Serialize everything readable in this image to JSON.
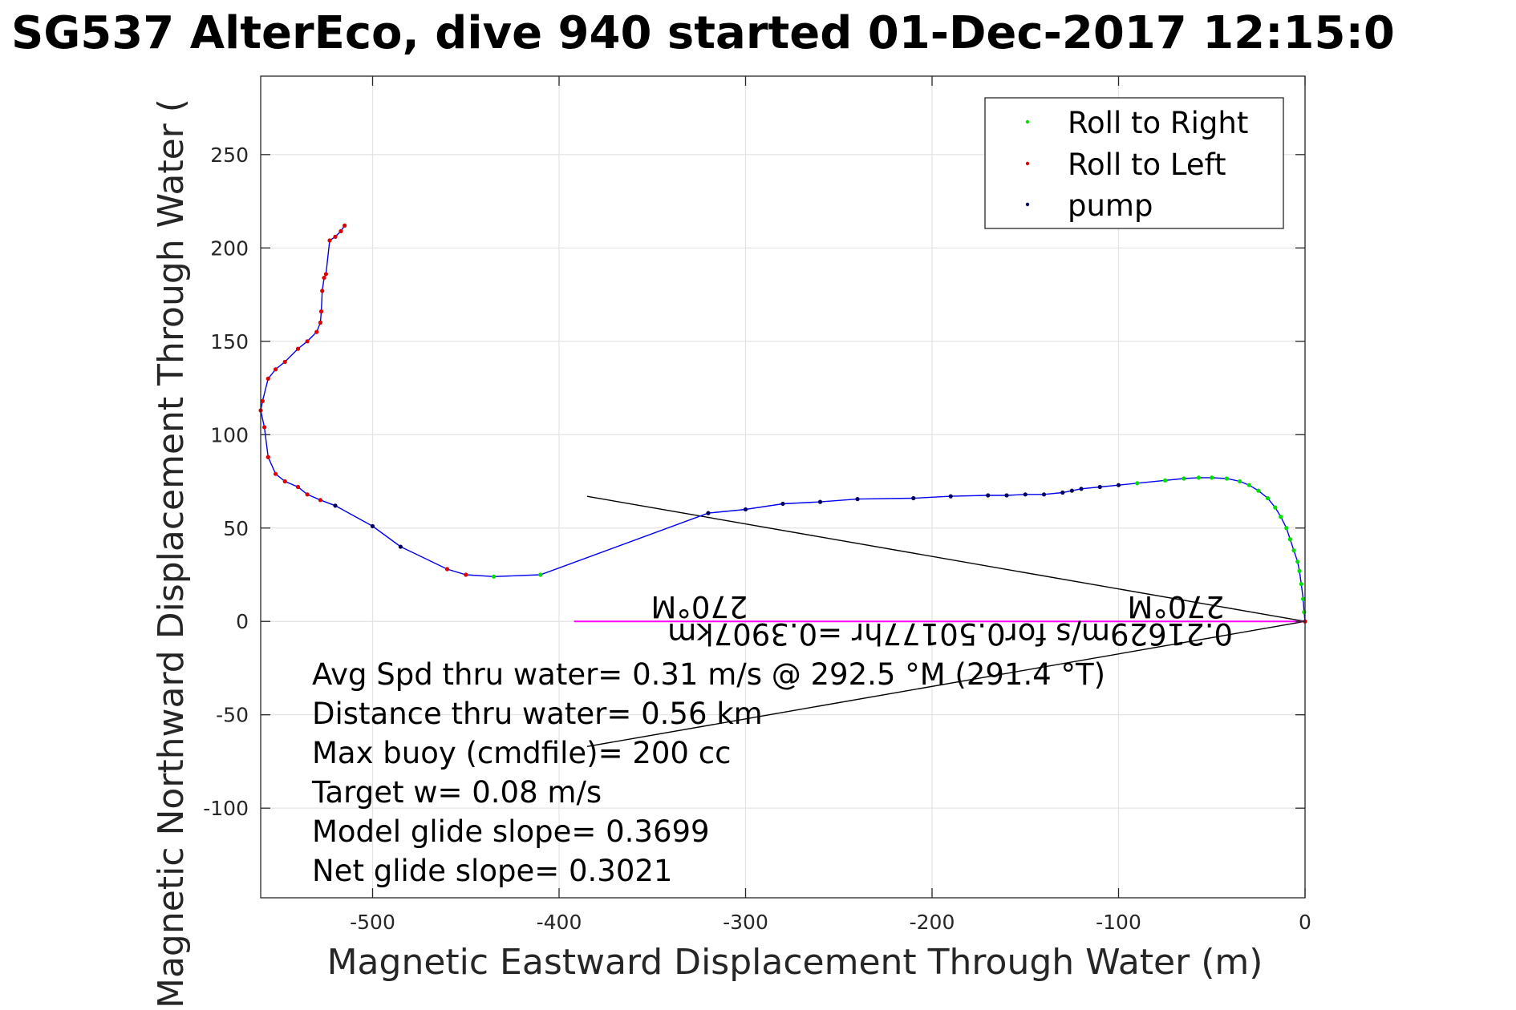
{
  "chart_data": {
    "type": "line",
    "title": "SG537 AlterEco, dive 940 started 01-Dec-2017 12:15:0",
    "xlabel": "Magnetic Eastward Displacement Through Water (m)",
    "ylabel": "Magnetic Northward Displacement Through Water (",
    "xlim": [
      -560,
      0
    ],
    "ylim": [
      -148,
      292
    ],
    "grid": true,
    "legend_position": "top-right",
    "x_ticks": [
      -500,
      -400,
      -300,
      -200,
      -100,
      0
    ],
    "y_ticks": [
      -100,
      -50,
      0,
      50,
      100,
      150,
      200,
      250
    ],
    "x_tick_labels": [
      "-500",
      "-400",
      "-300",
      "-200",
      "-100",
      "0"
    ],
    "y_tick_labels": [
      "-100",
      "-50",
      "0",
      "50",
      "100",
      "150",
      "200",
      "250"
    ],
    "colors": {
      "track": "#0000ee",
      "roll_right": "#00dd00",
      "roll_left": "#dd0000",
      "pump": "#000060",
      "heading": "#ff00ff",
      "ref_lines": "#000000"
    },
    "track": {
      "x": [
        0,
        -0.5,
        -1,
        -2,
        -3,
        -4,
        -6,
        -8,
        -10,
        -13,
        -16,
        -20,
        -25,
        -30,
        -35,
        -42,
        -50,
        -57,
        -65,
        -75,
        -90,
        -100,
        -110,
        -120,
        -125,
        -130,
        -140,
        -150,
        -160,
        -170,
        -190,
        -210,
        -240,
        -260,
        -280,
        -300,
        -320,
        -410,
        -435,
        -450,
        -460,
        -485,
        -500,
        -520,
        -528,
        -535,
        -540,
        -547,
        -552,
        -556,
        -558,
        -560,
        -559,
        -556,
        -552,
        -547,
        -540,
        -535,
        -530,
        -528,
        -527.5,
        -527,
        -526,
        -525,
        -523,
        -520,
        -517,
        -515
      ],
      "y": [
        0,
        5,
        12,
        20,
        27,
        32,
        38,
        44,
        50,
        56,
        61,
        66,
        70,
        73,
        75,
        76.5,
        77,
        77,
        76.5,
        75.5,
        74,
        73,
        72,
        71,
        70,
        69,
        68,
        68,
        67.5,
        67.5,
        67,
        66,
        65.5,
        64,
        63,
        60,
        58,
        25,
        24,
        25,
        28,
        40,
        51,
        62,
        65,
        68,
        72,
        75,
        79,
        88,
        104,
        113,
        118,
        130,
        135,
        139,
        146,
        150,
        155,
        160,
        166,
        177,
        184,
        186,
        204,
        206,
        209,
        212
      ],
      "mark_types": [
        "L",
        "R",
        "R",
        "R",
        "R",
        "R",
        "R",
        "R",
        "R",
        "R",
        "R",
        "R",
        "R",
        "R",
        "R",
        "R",
        "R",
        "R",
        "R",
        "R",
        "R",
        "P",
        "P",
        "P",
        "P",
        "P",
        "P",
        "P",
        "P",
        "P",
        "P",
        "P",
        "P",
        "P",
        "P",
        "P",
        "P",
        "R",
        "R",
        "L",
        "L",
        "P",
        "P",
        "P",
        "L",
        "L",
        "L",
        "L",
        "L",
        "L",
        "L",
        "L",
        "L",
        "L",
        "L",
        "L",
        "L",
        "L",
        "L",
        "L",
        "L",
        "L",
        "L",
        "L",
        "L",
        "L",
        "L",
        "L"
      ]
    },
    "heading_line": {
      "x": [
        0,
        -392
      ],
      "y": [
        0,
        0
      ]
    },
    "reference_lines": [
      {
        "x": [
          0,
          -385
        ],
        "y": [
          0,
          67
        ]
      },
      {
        "x": [
          0,
          -385
        ],
        "y": [
          0,
          -67
        ]
      }
    ],
    "annotations": {
      "heading_label_1": "270°M",
      "heading_label_2": "270°M",
      "current_label": "0.21629m/s for0.50177hr =0.3907km",
      "stats": [
        "Avg Spd thru water=  0.31 m/s @ 292.5 °M (291.4 °T)",
        "Distance thru water=  0.56 km",
        "Max buoy (cmdfile)= 200 cc",
        "Target w= 0.08 m/s",
        "Model glide slope= 0.3699",
        "Net glide slope= 0.3021"
      ]
    },
    "legend": [
      {
        "label": "Roll to Right",
        "color": "#00dd00"
      },
      {
        "label": "Roll to Left",
        "color": "#dd0000"
      },
      {
        "label": "pump",
        "color": "#000060"
      }
    ]
  }
}
